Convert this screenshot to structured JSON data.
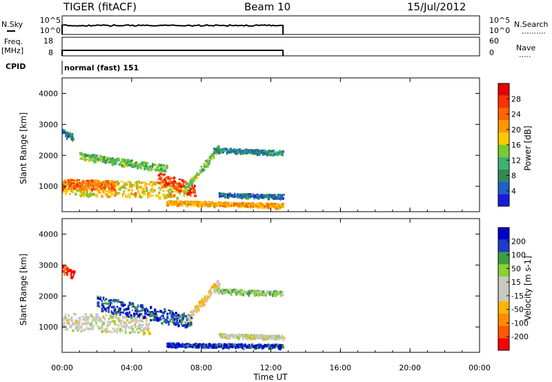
{
  "header": {
    "radar": "TIGER (fitACF)",
    "beam": "Beam 10",
    "date": "15/Jul/2012"
  },
  "nsky_panel": {
    "left_label": "N.Sky",
    "left_ticks": [
      "10^5",
      "10^0"
    ],
    "right_ticks": [
      "10^5",
      "10^0"
    ],
    "right_label": "N.Search"
  },
  "freq_panel": {
    "left_label": "Freq.",
    "left_unit": "[MHz]",
    "left_ticks": [
      "18",
      "8"
    ],
    "right_ticks": [
      "60",
      "0"
    ],
    "right_label": "Nave"
  },
  "cpid": {
    "label": "CPID",
    "value": "normal (fast) 151"
  },
  "colors": {
    "power_scale": [
      "#1a1adc",
      "#2060c8",
      "#2e8b57",
      "#3cb371",
      "#7cc832",
      "#ffc800",
      "#ff9600",
      "#ff6400",
      "#ff3200",
      "#e60000"
    ],
    "velocity_scale": [
      "#ff0000",
      "#ff5a00",
      "#ff8c00",
      "#ffb400",
      "#c8c8c0",
      "#c8c8c0",
      "#8cd232",
      "#3ca03c",
      "#1e3cc8",
      "#0000c8"
    ]
  },
  "chart_data": [
    {
      "type": "heatmap",
      "name": "power",
      "ylabel": "Slant Range [km]",
      "yticks": [
        "1000",
        "2000",
        "3000",
        "4000"
      ],
      "ylim": [
        180,
        4500
      ],
      "xlim": [
        0,
        24
      ],
      "colorbar": {
        "label": "Power [dB]",
        "ticks": [
          "4",
          "8",
          "12",
          "16",
          "20",
          "24",
          "28"
        ],
        "range": [
          0,
          32
        ]
      },
      "data_end_hour": 12.7,
      "echo_bands": [
        {
          "t0": 0.0,
          "t1": 7.2,
          "r0": 1000,
          "r1": 900,
          "width": 520,
          "value": 18
        },
        {
          "t0": 0.0,
          "t1": 3.0,
          "r0": 1100,
          "r1": 1050,
          "width": 300,
          "value": 24
        },
        {
          "t0": 1.0,
          "t1": 6.0,
          "r0": 2000,
          "r1": 1600,
          "width": 220,
          "value": 12
        },
        {
          "t0": 5.5,
          "t1": 7.6,
          "r0": 1300,
          "r1": 900,
          "width": 380,
          "value": 26
        },
        {
          "t0": 7.0,
          "t1": 9.0,
          "r0": 900,
          "r1": 2300,
          "width": 220,
          "value": 14
        },
        {
          "t0": 8.7,
          "t1": 12.7,
          "r0": 2200,
          "r1": 2100,
          "width": 140,
          "value": 8
        },
        {
          "t0": 6.0,
          "t1": 12.7,
          "r0": 500,
          "r1": 400,
          "width": 130,
          "value": 20
        },
        {
          "t0": 9.0,
          "t1": 12.7,
          "r0": 750,
          "r1": 700,
          "width": 120,
          "value": 6
        },
        {
          "t0": 0.0,
          "t1": 0.6,
          "r0": 2800,
          "r1": 2600,
          "width": 250,
          "value": 6
        }
      ]
    },
    {
      "type": "heatmap",
      "name": "velocity",
      "ylabel": "Slant Range [km]",
      "yticks": [
        "1000",
        "2000",
        "3000",
        "4000"
      ],
      "ylim": [
        180,
        4500
      ],
      "xlim": [
        0,
        24
      ],
      "xticks": [
        "00:00",
        "04:00",
        "08:00",
        "12:00",
        "16:00",
        "20:00",
        "00:00"
      ],
      "xlabel": "Time UT",
      "colorbar": {
        "label": "Velocity [m s-1]",
        "ticks": [
          "-200",
          "-100",
          "-50",
          "-15",
          "15",
          "50",
          "100",
          "200"
        ],
        "range": [
          -250,
          250
        ]
      },
      "data_end_hour": 12.7,
      "echo_bands": [
        {
          "t0": 0.0,
          "t1": 5.0,
          "r0": 1200,
          "r1": 1100,
          "width": 550,
          "value": 0
        },
        {
          "t0": 2.0,
          "t1": 7.4,
          "r0": 1800,
          "r1": 1200,
          "width": 450,
          "value": 180
        },
        {
          "t0": 0.0,
          "t1": 0.7,
          "r0": 2900,
          "r1": 2700,
          "width": 250,
          "value": -200
        },
        {
          "t0": 7.2,
          "t1": 9.0,
          "r0": 1300,
          "r1": 2500,
          "width": 260,
          "value": -50
        },
        {
          "t0": 8.7,
          "t1": 12.7,
          "r0": 2200,
          "r1": 2100,
          "width": 140,
          "value": 60
        },
        {
          "t0": 6.0,
          "t1": 12.7,
          "r0": 450,
          "r1": 400,
          "width": 120,
          "value": 200
        },
        {
          "t0": 9.0,
          "t1": 12.7,
          "r0": 750,
          "r1": 700,
          "width": 120,
          "value": 0
        }
      ]
    }
  ]
}
